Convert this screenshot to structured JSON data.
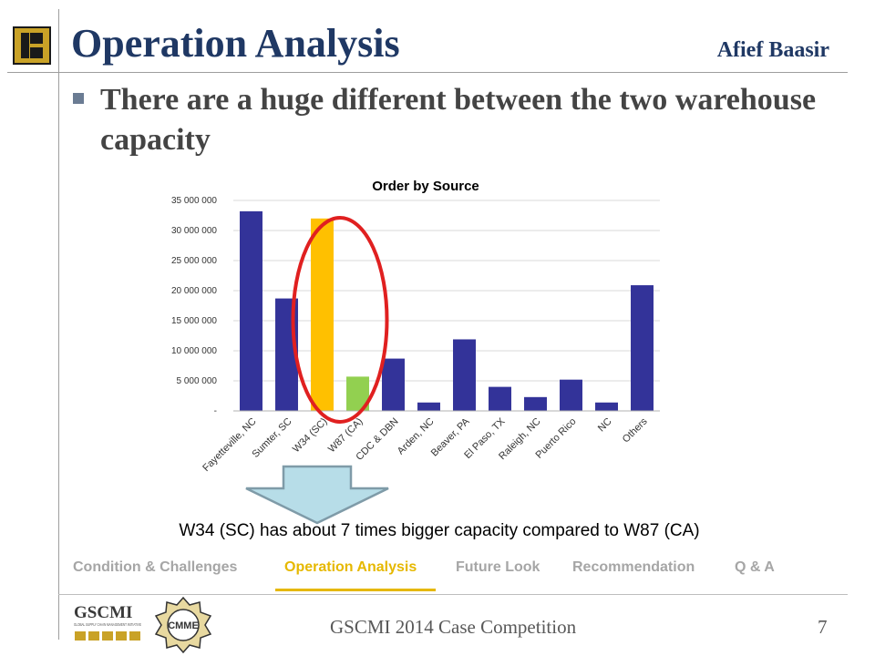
{
  "header": {
    "title": "Operation Analysis",
    "author": "Afief Baasir"
  },
  "bullet": "There are a huge different between the two warehouse capacity",
  "chart_data": {
    "type": "bar",
    "title": "Order by Source",
    "categories": [
      "Fayetteville, NC",
      "Sumter, SC",
      "W34 (SC)",
      "W87 (CA)",
      "CDC & DBN",
      "Arden, NC",
      "Beaver, PA",
      "El Paso, TX",
      "Raleigh, NC",
      "Puerto Rico",
      "NC",
      "Others"
    ],
    "values": [
      33200000,
      18700000,
      32000000,
      5700000,
      8700000,
      1400000,
      11900000,
      4000000,
      2300000,
      5200000,
      1400000,
      20900000
    ],
    "bar_colors": [
      "#333399",
      "#333399",
      "#ffc000",
      "#92d050",
      "#333399",
      "#333399",
      "#333399",
      "#333399",
      "#333399",
      "#333399",
      "#333399",
      "#333399"
    ],
    "ylim": [
      0,
      35000000
    ],
    "yticks": [
      {
        "value": 0,
        "label": "-"
      },
      {
        "value": 5000000,
        "label": "5 000 000"
      },
      {
        "value": 10000000,
        "label": "10 000 000"
      },
      {
        "value": 15000000,
        "label": "15 000 000"
      },
      {
        "value": 20000000,
        "label": "20 000 000"
      },
      {
        "value": 25000000,
        "label": "25 000 000"
      },
      {
        "value": 30000000,
        "label": "30 000 000"
      },
      {
        "value": 35000000,
        "label": "35 000 000"
      }
    ],
    "grid": true,
    "highlight": {
      "shape": "ellipse",
      "color": "#e02020",
      "categories": [
        "W34 (SC)",
        "W87 (CA)"
      ]
    }
  },
  "caption": "W34 (SC) has about 7 times bigger capacity compared to W87 (CA)",
  "nav": {
    "items": [
      {
        "label": "Condition & Challenges",
        "active": false
      },
      {
        "label": "Operation Analysis",
        "active": true
      },
      {
        "label": "Future Look",
        "active": false
      },
      {
        "label": "Recommendation",
        "active": false
      },
      {
        "label": "Q & A",
        "active": false
      }
    ]
  },
  "logos": {
    "gscmi_name": "GSCMI",
    "gscmi_sub": "GLOBAL SUPPLY CHAIN MANAGEMENT INITIATIVE",
    "cmme_name": "CMME"
  },
  "footer": {
    "text": "GSCMI 2014 Case Competition",
    "page": "7"
  },
  "colors": {
    "title": "#1f3864",
    "nav_active": "#e6b800",
    "nav_inactive": "#a6a6a6",
    "bar_default": "#333399"
  }
}
